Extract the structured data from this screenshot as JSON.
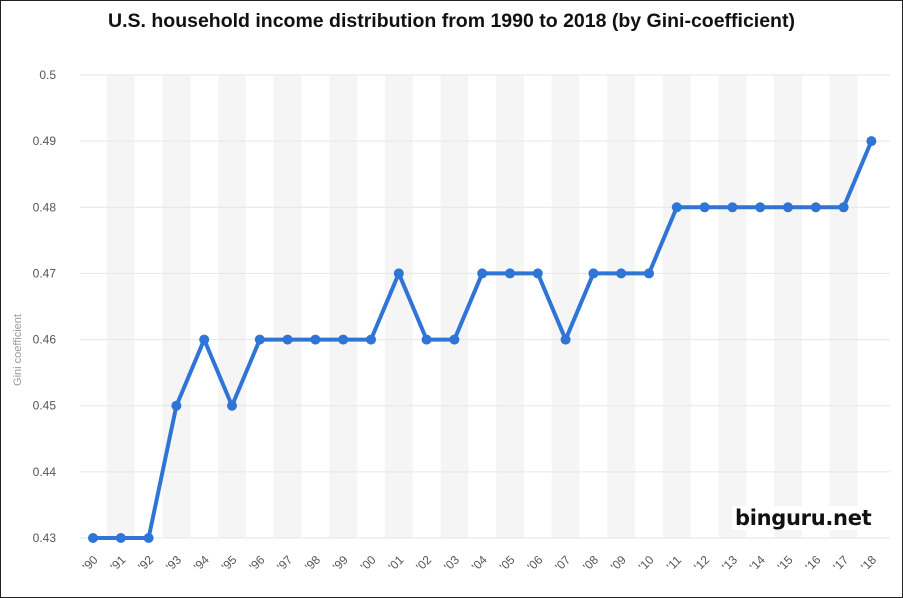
{
  "chart_data": {
    "type": "line",
    "title": "U.S. household income distribution from 1990 to 2018 (by Gini-coefficient)",
    "xlabel": "",
    "ylabel": "Gini coefficient",
    "categories": [
      "'90",
      "'91",
      "'92",
      "'93",
      "'94",
      "'95",
      "'96",
      "'97",
      "'98",
      "'99",
      "'00",
      "'01",
      "'02",
      "'03",
      "'04",
      "'05",
      "'06",
      "'07",
      "'08",
      "'09",
      "'10",
      "'11",
      "'12",
      "'13",
      "'14",
      "'15",
      "'16",
      "'17",
      "'18"
    ],
    "series": [
      {
        "values": [
          0.43,
          0.43,
          0.43,
          0.45,
          0.46,
          0.45,
          0.46,
          0.46,
          0.46,
          0.46,
          0.46,
          0.47,
          0.46,
          0.46,
          0.47,
          0.47,
          0.47,
          0.46,
          0.47,
          0.47,
          0.47,
          0.48,
          0.48,
          0.48,
          0.48,
          0.48,
          0.48,
          0.48,
          0.49
        ]
      }
    ],
    "ylim": [
      0.43,
      0.5
    ],
    "yticks": [
      "0.43",
      "0.44",
      "0.45",
      "0.46",
      "0.47",
      "0.48",
      "0.49",
      "0.5"
    ],
    "grid": true,
    "line_color": "#2f75d6",
    "band_color": "#f5f5f5",
    "grid_color": "#e6e6e6"
  },
  "watermark": "binguru.net"
}
